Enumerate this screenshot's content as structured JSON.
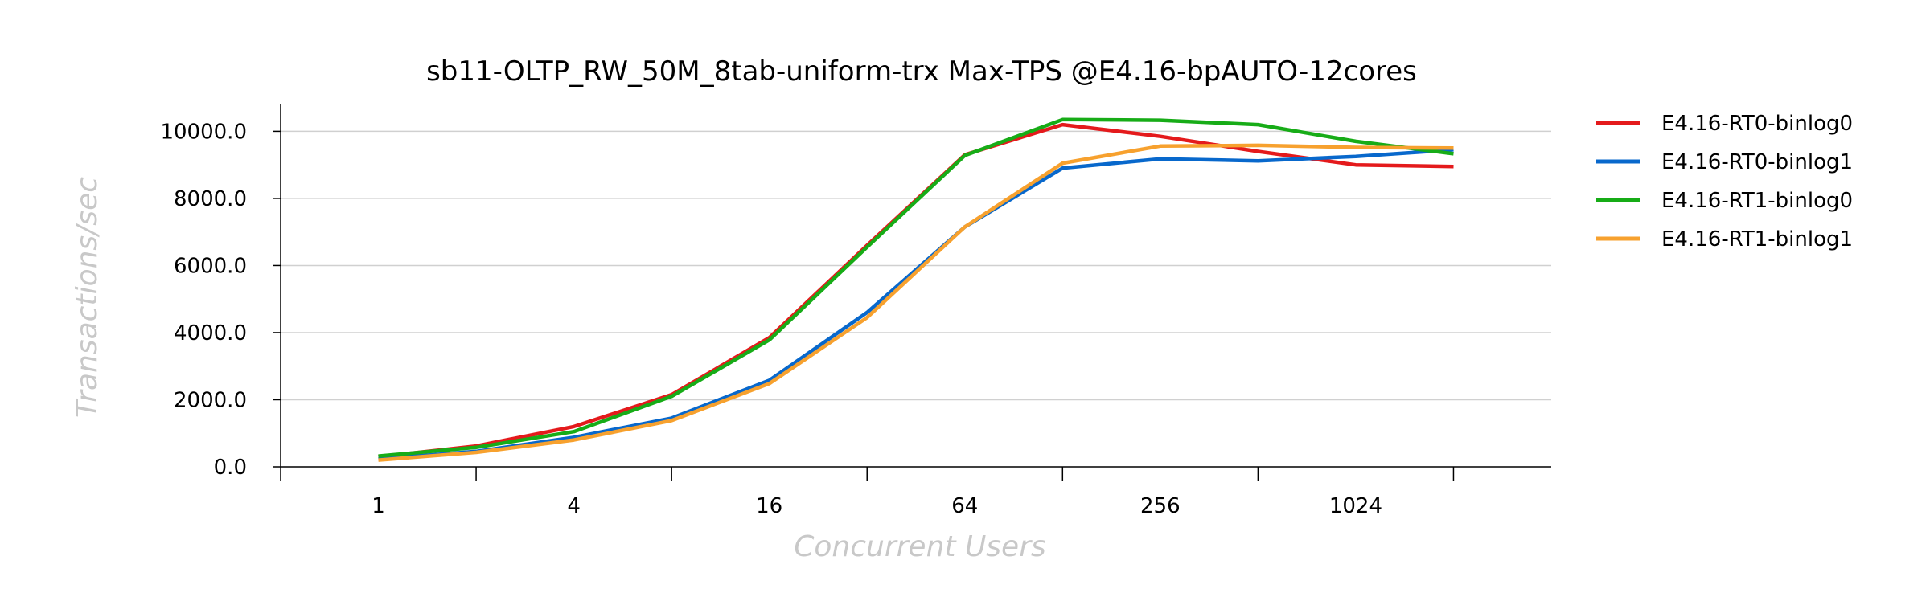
{
  "chart_data": {
    "type": "line",
    "title": "sb11-OLTP_RW_50M_8tab-uniform-trx Max-TPS @E4.16-bpAUTO-12cores",
    "xlabel": "Concurrent Users",
    "ylabel": "Transactions/sec",
    "x": [
      1,
      2,
      4,
      8,
      16,
      32,
      64,
      128,
      256,
      512,
      1024,
      2048
    ],
    "x_scale": "log2",
    "xlim": [
      0.5,
      4096
    ],
    "xticks": [
      1,
      4,
      16,
      64,
      256,
      1024
    ],
    "xtick_labels": [
      "1",
      "4",
      "16",
      "64",
      "256",
      "1024"
    ],
    "ylim": [
      0,
      10800
    ],
    "yticks": [
      0,
      2000,
      4000,
      6000,
      8000,
      10000
    ],
    "ytick_labels": [
      "0.0",
      "2000.0",
      "4000.0",
      "6000.0",
      "8000.0",
      "10000.0"
    ],
    "grid": "horizontal",
    "legend_position": "right",
    "series": [
      {
        "name": "E4.16-RT0-binlog0",
        "color": "#e41a1c",
        "values": [
          300,
          620,
          1200,
          2150,
          3850,
          6600,
          9300,
          10200,
          9850,
          9400,
          9000,
          8950
        ]
      },
      {
        "name": "E4.16-RT0-binlog1",
        "color": "#0868cc",
        "values": [
          230,
          460,
          880,
          1450,
          2580,
          4600,
          7150,
          8900,
          9180,
          9120,
          9250,
          9450
        ]
      },
      {
        "name": "E4.16-RT1-binlog0",
        "color": "#17ac17",
        "values": [
          320,
          580,
          1050,
          2100,
          3780,
          6550,
          9280,
          10350,
          10330,
          10200,
          9700,
          9330
        ]
      },
      {
        "name": "E4.16-RT1-binlog1",
        "color": "#f7a12e",
        "values": [
          200,
          430,
          800,
          1380,
          2480,
          4450,
          7150,
          9050,
          9560,
          9580,
          9520,
          9500
        ]
      }
    ]
  }
}
